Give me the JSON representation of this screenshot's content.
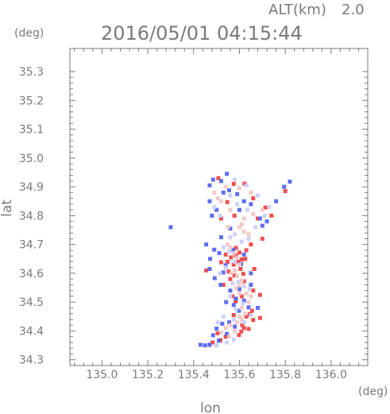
{
  "header": {
    "altitude_label": "ALT(km)",
    "altitude_value": "2.0",
    "timestamp": "2016/05/01 04:15:44",
    "y_unit": "(deg)",
    "x_unit": "(deg)"
  },
  "chart_data": {
    "type": "scatter",
    "title": "2016/05/01 04:15:44",
    "xlabel": "lon",
    "ylabel": "lat",
    "x_unit": "(deg)",
    "y_unit": "(deg)",
    "xlim": [
      134.86,
      136.16
    ],
    "ylim": [
      34.28,
      35.38
    ],
    "x_ticks": [
      135.0,
      135.2,
      135.4,
      135.6,
      135.8,
      136.0
    ],
    "x_tick_labels": [
      "135.0",
      "135.2",
      "135.4",
      "135.6",
      "135.8",
      "136.0"
    ],
    "y_ticks": [
      34.3,
      34.4,
      34.5,
      34.6,
      34.7,
      34.8,
      34.9,
      35.0,
      35.1,
      35.2,
      35.3
    ],
    "y_tick_labels": [
      "34.3",
      "34.4",
      "34.5",
      "34.6",
      "34.7",
      "34.8",
      "34.9",
      "35.0",
      "35.1",
      "35.2",
      "35.3"
    ],
    "grid": false,
    "colors": {
      "axis": "#7a7a7a",
      "positive": "#ee4444",
      "negative": "#5566ee"
    },
    "series": [
      {
        "color": "#ee4444",
        "points": [
          [
            135.563,
            34.655
          ],
          [
            135.585,
            34.662
          ],
          [
            135.61,
            34.648
          ],
          [
            135.595,
            34.64
          ],
          [
            135.548,
            34.64
          ],
          [
            135.575,
            34.63
          ],
          [
            135.52,
            34.638
          ],
          [
            135.605,
            34.615
          ],
          [
            135.625,
            34.65
          ],
          [
            135.553,
            34.606
          ],
          [
            135.63,
            34.68
          ],
          [
            135.6,
            34.672
          ],
          [
            135.578,
            34.593
          ],
          [
            135.62,
            34.572
          ],
          [
            135.56,
            34.58
          ],
          [
            135.655,
            34.47
          ],
          [
            135.645,
            34.458
          ],
          [
            135.63,
            34.45
          ],
          [
            135.66,
            34.438
          ],
          [
            135.69,
            34.445
          ],
          [
            135.62,
            34.41
          ],
          [
            135.608,
            34.398
          ],
          [
            135.64,
            34.407
          ],
          [
            135.598,
            34.386
          ],
          [
            135.612,
            34.42
          ],
          [
            135.517,
            34.368
          ],
          [
            135.483,
            34.36
          ],
          [
            135.47,
            34.352
          ],
          [
            135.54,
            34.38
          ],
          [
            135.505,
            34.392
          ],
          [
            135.583,
            34.502
          ],
          [
            135.61,
            34.52
          ],
          [
            135.57,
            34.52
          ],
          [
            135.52,
            34.79
          ],
          [
            135.68,
            34.79
          ],
          [
            135.578,
            34.8
          ],
          [
            135.547,
            34.847
          ],
          [
            135.66,
            34.86
          ],
          [
            135.74,
            34.8
          ],
          [
            135.713,
            34.828
          ],
          [
            135.575,
            34.91
          ],
          [
            135.622,
            34.911
          ],
          [
            135.508,
            34.93
          ],
          [
            135.65,
            34.7
          ],
          [
            135.7,
            34.72
          ],
          [
            135.69,
            34.525
          ],
          [
            135.66,
            34.54
          ],
          [
            135.585,
            34.688
          ],
          [
            135.54,
            34.665
          ],
          [
            135.617,
            34.598
          ],
          [
            135.8,
            34.885
          ],
          [
            135.455,
            34.61
          ],
          [
            135.53,
            34.56
          ],
          [
            135.665,
            34.615
          ],
          [
            135.575,
            34.455
          ]
        ]
      },
      {
        "color": "#5566ee",
        "points": [
          [
            135.512,
            34.67
          ],
          [
            135.472,
            34.65
          ],
          [
            135.49,
            34.682
          ],
          [
            135.47,
            34.615
          ],
          [
            135.53,
            34.603
          ],
          [
            135.573,
            34.682
          ],
          [
            135.62,
            34.665
          ],
          [
            135.492,
            34.583
          ],
          [
            135.518,
            34.56
          ],
          [
            135.607,
            34.632
          ],
          [
            135.54,
            34.628
          ],
          [
            135.65,
            34.6
          ],
          [
            135.6,
            34.545
          ],
          [
            135.585,
            34.512
          ],
          [
            135.64,
            34.482
          ],
          [
            135.598,
            34.47
          ],
          [
            135.575,
            34.49
          ],
          [
            135.62,
            34.505
          ],
          [
            135.68,
            34.48
          ],
          [
            135.56,
            34.54
          ],
          [
            135.525,
            34.425
          ],
          [
            135.5,
            34.408
          ],
          [
            135.555,
            34.43
          ],
          [
            135.485,
            34.385
          ],
          [
            135.47,
            34.352
          ],
          [
            135.45,
            34.35
          ],
          [
            135.43,
            34.352
          ],
          [
            135.545,
            34.39
          ],
          [
            135.58,
            34.415
          ],
          [
            135.51,
            34.366
          ],
          [
            135.53,
            34.88
          ],
          [
            135.555,
            34.888
          ],
          [
            135.52,
            34.92
          ],
          [
            135.47,
            34.905
          ],
          [
            135.485,
            34.925
          ],
          [
            135.545,
            34.945
          ],
          [
            135.59,
            34.875
          ],
          [
            135.62,
            34.85
          ],
          [
            135.47,
            34.85
          ],
          [
            135.48,
            34.8
          ],
          [
            135.5,
            34.82
          ],
          [
            135.65,
            34.84
          ],
          [
            135.69,
            34.79
          ],
          [
            135.72,
            34.78
          ],
          [
            135.76,
            34.85
          ],
          [
            135.795,
            34.9
          ],
          [
            135.82,
            34.918
          ],
          [
            135.3,
            34.76
          ],
          [
            135.455,
            34.7
          ],
          [
            135.52,
            34.725
          ],
          [
            135.56,
            34.755
          ],
          [
            135.7,
            34.765
          ],
          [
            135.6,
            34.82
          ],
          [
            135.65,
            34.56
          ],
          [
            135.542,
            34.5
          ]
        ]
      },
      {
        "color": "#f3c6c6",
        "points": [
          [
            135.548,
            34.7
          ],
          [
            135.56,
            34.69
          ],
          [
            135.575,
            34.67
          ],
          [
            135.59,
            34.655
          ],
          [
            135.6,
            34.63
          ],
          [
            135.58,
            34.61
          ],
          [
            135.565,
            34.6
          ],
          [
            135.59,
            34.59
          ],
          [
            135.61,
            34.575
          ],
          [
            135.6,
            34.56
          ],
          [
            135.585,
            34.548
          ],
          [
            135.6,
            34.53
          ],
          [
            135.63,
            34.53
          ],
          [
            135.65,
            34.52
          ],
          [
            135.64,
            34.5
          ],
          [
            135.61,
            34.48
          ],
          [
            135.625,
            34.46
          ],
          [
            135.6,
            34.45
          ],
          [
            135.59,
            34.43
          ],
          [
            135.61,
            34.44
          ],
          [
            135.56,
            34.42
          ],
          [
            135.54,
            34.41
          ],
          [
            135.58,
            34.4
          ],
          [
            135.555,
            34.38
          ],
          [
            135.52,
            34.395
          ],
          [
            135.6,
            34.76
          ],
          [
            135.62,
            34.745
          ],
          [
            135.64,
            34.735
          ],
          [
            135.61,
            34.77
          ],
          [
            135.55,
            34.76
          ],
          [
            135.66,
            34.805
          ],
          [
            135.62,
            34.79
          ],
          [
            135.7,
            34.82
          ],
          [
            135.56,
            34.82
          ],
          [
            135.52,
            34.85
          ],
          [
            135.54,
            34.9
          ],
          [
            135.6,
            34.895
          ],
          [
            135.65,
            34.88
          ],
          [
            135.49,
            34.88
          ],
          [
            135.505,
            34.86
          ]
        ]
      },
      {
        "color": "#c9cff5",
        "points": [
          [
            135.53,
            34.69
          ],
          [
            135.555,
            34.675
          ],
          [
            135.58,
            34.64
          ],
          [
            135.54,
            34.62
          ],
          [
            135.515,
            34.6
          ],
          [
            135.57,
            34.565
          ],
          [
            135.595,
            34.57
          ],
          [
            135.62,
            34.555
          ],
          [
            135.645,
            34.545
          ],
          [
            135.56,
            34.52
          ],
          [
            135.615,
            34.495
          ],
          [
            135.585,
            34.475
          ],
          [
            135.65,
            34.455
          ],
          [
            135.62,
            34.43
          ],
          [
            135.575,
            34.44
          ],
          [
            135.53,
            34.45
          ],
          [
            135.505,
            34.43
          ],
          [
            135.545,
            34.36
          ],
          [
            135.5,
            34.35
          ],
          [
            135.575,
            34.37
          ],
          [
            135.64,
            34.72
          ],
          [
            135.61,
            34.71
          ],
          [
            135.58,
            34.735
          ],
          [
            135.56,
            34.725
          ],
          [
            135.67,
            34.76
          ],
          [
            135.71,
            34.8
          ],
          [
            135.73,
            34.83
          ],
          [
            135.59,
            34.84
          ],
          [
            135.635,
            34.82
          ],
          [
            135.515,
            34.8
          ],
          [
            135.49,
            34.83
          ],
          [
            135.56,
            34.87
          ],
          [
            135.58,
            34.925
          ],
          [
            135.63,
            34.905
          ],
          [
            135.68,
            34.87
          ]
        ]
      }
    ]
  }
}
